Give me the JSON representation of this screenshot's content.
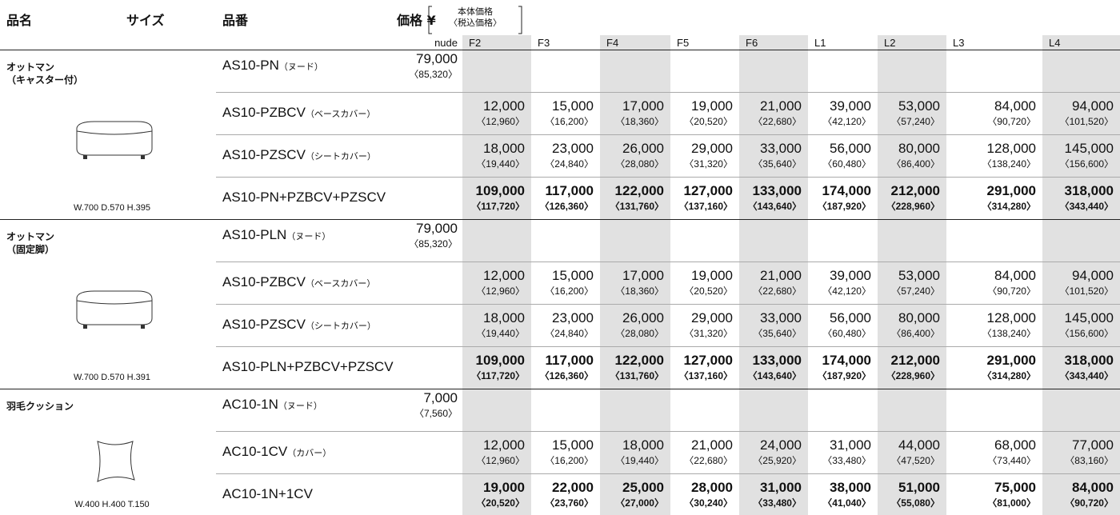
{
  "header": {
    "name": "品名",
    "size": "サイズ",
    "code": "品番",
    "price": "価格 ¥",
    "price_note": [
      "本体価格",
      "〈税込価格〉"
    ]
  },
  "columns": [
    "nude",
    "F2",
    "F3",
    "F4",
    "F5",
    "F6",
    "L1",
    "L2",
    "L3",
    "L4"
  ],
  "groups": [
    {
      "name": [
        "オットマン",
        "（キャスター付）"
      ],
      "size": "W.700  D.570  H.395",
      "rows": [
        {
          "code": "AS10-PN",
          "suffix": "（ヌード）",
          "nude": [
            "79,000",
            "〈85,320〉"
          ]
        },
        {
          "code": "AS10-PZBCV",
          "suffix": "（ベースカバー）",
          "prices": [
            [
              "12,000",
              "〈12,960〉"
            ],
            [
              "15,000",
              "〈16,200〉"
            ],
            [
              "17,000",
              "〈18,360〉"
            ],
            [
              "19,000",
              "〈20,520〉"
            ],
            [
              "21,000",
              "〈22,680〉"
            ],
            [
              "39,000",
              "〈42,120〉"
            ],
            [
              "53,000",
              "〈57,240〉"
            ],
            [
              "84,000",
              "〈90,720〉"
            ],
            [
              "94,000",
              "〈101,520〉"
            ]
          ]
        },
        {
          "code": "AS10-PZSCV",
          "suffix": "（シートカバー）",
          "prices": [
            [
              "18,000",
              "〈19,440〉"
            ],
            [
              "23,000",
              "〈24,840〉"
            ],
            [
              "26,000",
              "〈28,080〉"
            ],
            [
              "29,000",
              "〈31,320〉"
            ],
            [
              "33,000",
              "〈35,640〉"
            ],
            [
              "56,000",
              "〈60,480〉"
            ],
            [
              "80,000",
              "〈86,400〉"
            ],
            [
              "128,000",
              "〈138,240〉"
            ],
            [
              "145,000",
              "〈156,600〉"
            ]
          ]
        },
        {
          "code": "AS10-PN+PZBCV+PZSCV",
          "total": true,
          "prices": [
            [
              "109,000",
              "〈117,720〉"
            ],
            [
              "117,000",
              "〈126,360〉"
            ],
            [
              "122,000",
              "〈131,760〉"
            ],
            [
              "127,000",
              "〈137,160〉"
            ],
            [
              "133,000",
              "〈143,640〉"
            ],
            [
              "174,000",
              "〈187,920〉"
            ],
            [
              "212,000",
              "〈228,960〉"
            ],
            [
              "291,000",
              "〈314,280〉"
            ],
            [
              "318,000",
              "〈343,440〉"
            ]
          ]
        }
      ]
    },
    {
      "name": [
        "オットマン",
        "（固定脚）"
      ],
      "size": "W.700  D.570  H.391",
      "rows": [
        {
          "code": "AS10-PLN",
          "suffix": "（ヌード）",
          "nude": [
            "79,000",
            "〈85,320〉"
          ]
        },
        {
          "code": "AS10-PZBCV",
          "suffix": "（ベースカバー）",
          "prices": [
            [
              "12,000",
              "〈12,960〉"
            ],
            [
              "15,000",
              "〈16,200〉"
            ],
            [
              "17,000",
              "〈18,360〉"
            ],
            [
              "19,000",
              "〈20,520〉"
            ],
            [
              "21,000",
              "〈22,680〉"
            ],
            [
              "39,000",
              "〈42,120〉"
            ],
            [
              "53,000",
              "〈57,240〉"
            ],
            [
              "84,000",
              "〈90,720〉"
            ],
            [
              "94,000",
              "〈101,520〉"
            ]
          ]
        },
        {
          "code": "AS10-PZSCV",
          "suffix": "（シートカバー）",
          "prices": [
            [
              "18,000",
              "〈19,440〉"
            ],
            [
              "23,000",
              "〈24,840〉"
            ],
            [
              "26,000",
              "〈28,080〉"
            ],
            [
              "29,000",
              "〈31,320〉"
            ],
            [
              "33,000",
              "〈35,640〉"
            ],
            [
              "56,000",
              "〈60,480〉"
            ],
            [
              "80,000",
              "〈86,400〉"
            ],
            [
              "128,000",
              "〈138,240〉"
            ],
            [
              "145,000",
              "〈156,600〉"
            ]
          ]
        },
        {
          "code": "AS10-PLN+PZBCV+PZSCV",
          "total": true,
          "prices": [
            [
              "109,000",
              "〈117,720〉"
            ],
            [
              "117,000",
              "〈126,360〉"
            ],
            [
              "122,000",
              "〈131,760〉"
            ],
            [
              "127,000",
              "〈137,160〉"
            ],
            [
              "133,000",
              "〈143,640〉"
            ],
            [
              "174,000",
              "〈187,920〉"
            ],
            [
              "212,000",
              "〈228,960〉"
            ],
            [
              "291,000",
              "〈314,280〉"
            ],
            [
              "318,000",
              "〈343,440〉"
            ]
          ]
        }
      ]
    },
    {
      "name": [
        "羽毛クッション"
      ],
      "size": "W.400  H.400  T.150",
      "rows": [
        {
          "code": "AC10-1N",
          "suffix": "（ヌード）",
          "nude": [
            "7,000",
            "〈7,560〉"
          ]
        },
        {
          "code": "AC10-1CV",
          "suffix": "（カバー）",
          "prices": [
            [
              "12,000",
              "〈12,960〉"
            ],
            [
              "15,000",
              "〈16,200〉"
            ],
            [
              "18,000",
              "〈19,440〉"
            ],
            [
              "21,000",
              "〈22,680〉"
            ],
            [
              "24,000",
              "〈25,920〉"
            ],
            [
              "31,000",
              "〈33,480〉"
            ],
            [
              "44,000",
              "〈47,520〉"
            ],
            [
              "68,000",
              "〈73,440〉"
            ],
            [
              "77,000",
              "〈83,160〉"
            ]
          ]
        },
        {
          "code": "AC10-1N+1CV",
          "total": true,
          "prices": [
            [
              "19,000",
              "〈20,520〉"
            ],
            [
              "22,000",
              "〈23,760〉"
            ],
            [
              "25,000",
              "〈27,000〉"
            ],
            [
              "28,000",
              "〈30,240〉"
            ],
            [
              "31,000",
              "〈33,480〉"
            ],
            [
              "38,000",
              "〈41,040〉"
            ],
            [
              "51,000",
              "〈55,080〉"
            ],
            [
              "75,000",
              "〈81,000〉"
            ],
            [
              "84,000",
              "〈90,720〉"
            ]
          ]
        }
      ]
    }
  ]
}
